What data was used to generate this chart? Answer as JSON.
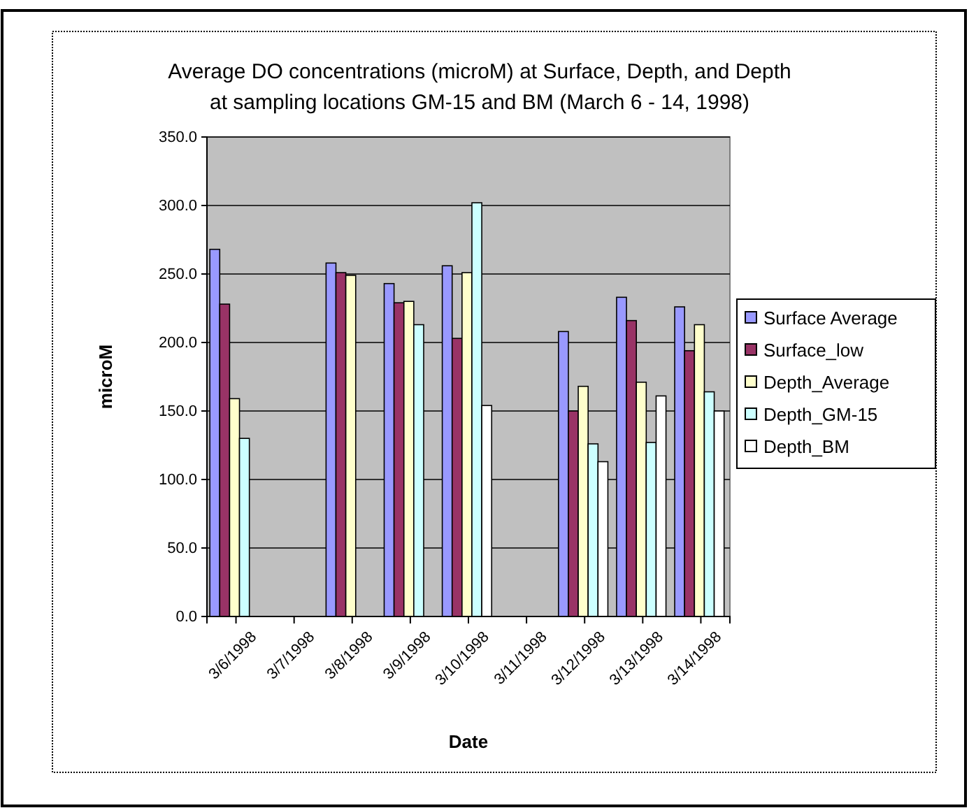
{
  "chart_data": {
    "type": "bar",
    "title": "Average DO concentrations (microM) at Surface, Depth, and Depth at sampling locations GM-15 and BM (March 6 - 14, 1998)",
    "xlabel": "Date",
    "ylabel": "microM",
    "categories": [
      "3/6/1998",
      "3/7/1998",
      "3/8/1998",
      "3/9/1998",
      "3/10/1998",
      "3/11/1998",
      "3/12/1998",
      "3/13/1998",
      "3/14/1998"
    ],
    "series": [
      {
        "name": "Surface Average",
        "color": "#9999ff",
        "values": [
          268,
          null,
          258,
          243,
          256,
          null,
          208,
          233,
          226
        ]
      },
      {
        "name": "Surface_low",
        "color": "#993366",
        "values": [
          228,
          null,
          251,
          229,
          203,
          null,
          150,
          216,
          194
        ]
      },
      {
        "name": "Depth_Average",
        "color": "#ffffcc",
        "values": [
          159,
          null,
          249,
          230,
          251,
          null,
          168,
          171,
          213
        ]
      },
      {
        "name": "Depth_GM-15",
        "color": "#ccffff",
        "values": [
          130,
          null,
          null,
          213,
          302,
          null,
          126,
          127,
          164
        ]
      },
      {
        "name": "Depth_BM",
        "color": "#ffffff",
        "values": [
          null,
          null,
          null,
          null,
          154,
          null,
          113,
          161,
          150
        ]
      }
    ],
    "ylim": [
      0,
      350
    ],
    "yticks": [
      {
        "value": 0,
        "label": "0.0"
      },
      {
        "value": 50,
        "label": "50.0"
      },
      {
        "value": 100,
        "label": "100.0"
      },
      {
        "value": 150,
        "label": "150.0"
      },
      {
        "value": 200,
        "label": "200.0"
      },
      {
        "value": 250,
        "label": "250.0"
      },
      {
        "value": 300,
        "label": "300.0"
      },
      {
        "value": 350,
        "label": "350.0"
      }
    ],
    "grid": "y",
    "legend": "right"
  }
}
